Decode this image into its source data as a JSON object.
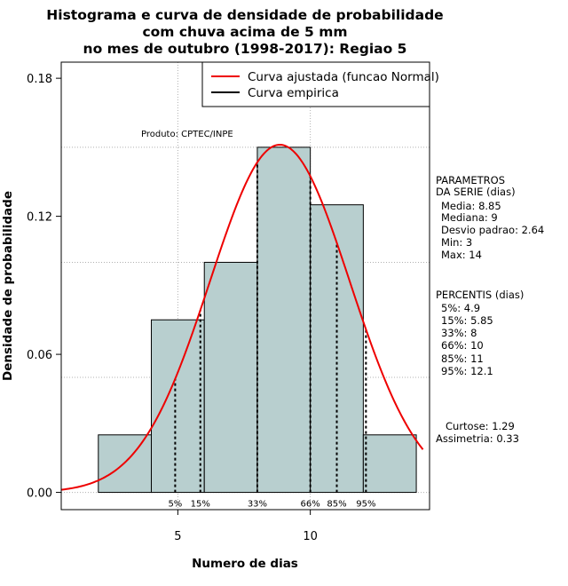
{
  "chart_data": {
    "type": "bar",
    "title": [
      "Histograma e curva de densidade de probabilidade",
      "com chuva acima de 5 mm",
      "no mes de outubro (1998-2017): Regiao 5"
    ],
    "xlabel": "Numero de dias",
    "ylabel": "Densidade de probabilidade",
    "xlim": [
      0.6,
      14.5
    ],
    "ylim": [
      -0.0075,
      0.187
    ],
    "x_ticks": [
      5,
      10
    ],
    "y_ticks": [
      0.0,
      0.06,
      0.12,
      0.18
    ],
    "y_tick_labels": [
      "0.00",
      "0.06",
      "0.12",
      "0.18"
    ],
    "bins": [
      {
        "start": 2,
        "end": 4,
        "density": 0.025
      },
      {
        "start": 4,
        "end": 6,
        "density": 0.075
      },
      {
        "start": 6,
        "end": 8,
        "density": 0.1
      },
      {
        "start": 8,
        "end": 10,
        "density": 0.15
      },
      {
        "start": 10,
        "end": 12,
        "density": 0.125
      },
      {
        "start": 12,
        "end": 14,
        "density": 0.025
      }
    ],
    "bar_color": "#b8cfcf",
    "fitted_curve": {
      "mean": 8.85,
      "sd": 2.64,
      "color": "#ee0000"
    },
    "percentile_lines": [
      {
        "label": "5%",
        "x": 4.9
      },
      {
        "label": "15%",
        "x": 5.85
      },
      {
        "label": "33%",
        "x": 8
      },
      {
        "label": "66%",
        "x": 10
      },
      {
        "label": "85%",
        "x": 11
      },
      {
        "label": "95%",
        "x": 12.1
      }
    ],
    "grid_y": [
      0.05,
      0.1,
      0.15
    ],
    "grid_x": [
      5,
      10
    ],
    "grid": true,
    "legend": {
      "position": "top-right",
      "entries": [
        {
          "label": "Curva ajustada (funcao Normal)",
          "color": "#ee0000"
        },
        {
          "label": "Curva empirica",
          "color": "#000000"
        }
      ]
    },
    "annotation": "Produto: CPTEC/INPE"
  },
  "side_panel": {
    "params_header": [
      "PARAMETROS",
      "DA SERIE (dias)"
    ],
    "params": [
      "Media: 8.85",
      "Mediana: 9",
      "Desvio padrao: 2.64",
      "Min: 3",
      "Max: 14"
    ],
    "percentis_header": "PERCENTIS (dias)",
    "percentis": [
      "5%: 4.9",
      "15%: 5.85",
      "33%: 8",
      "66%: 10",
      "85%: 11",
      "95%: 12.1"
    ],
    "curtose": "Curtose: 1.29",
    "assimetria": "Assimetria: 0.33"
  }
}
